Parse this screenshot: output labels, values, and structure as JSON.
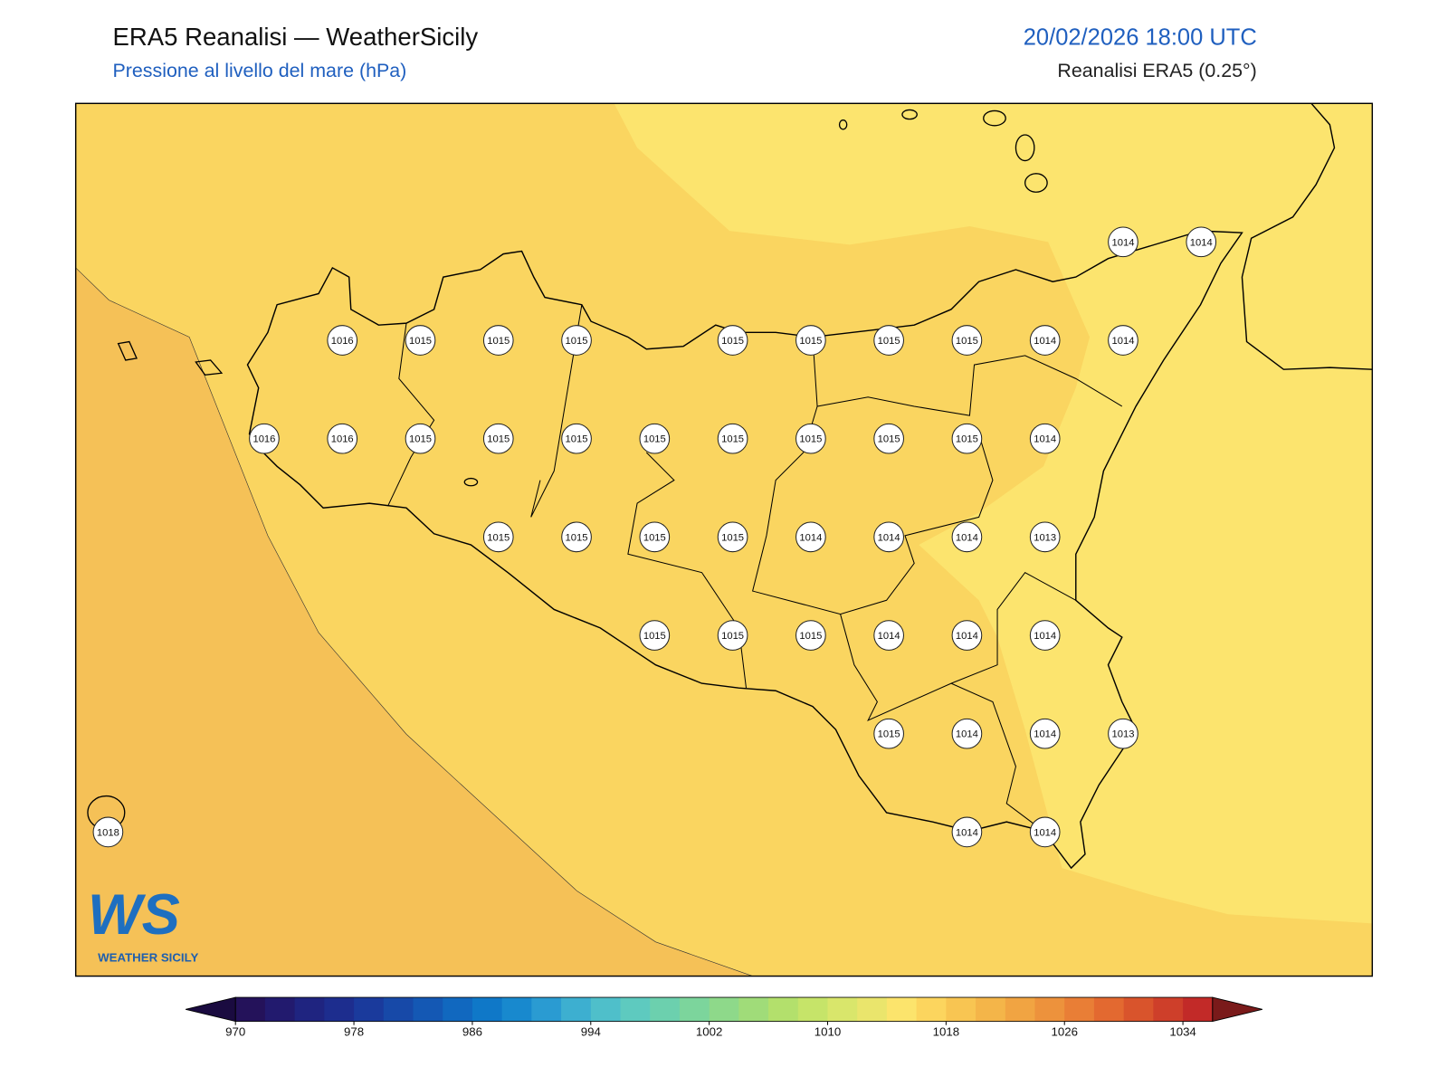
{
  "header": {
    "title": "ERA5 Reanalisi — WeatherSicily",
    "subtitle": "Pressione al livello del mare (hPa)",
    "datetime": "20/02/2026 18:00 UTC",
    "source": "Reanalisi ERA5 (0.25°)"
  },
  "map": {
    "stations": [
      [
        null,
        null,
        null,
        null,
        null,
        null,
        null,
        null,
        null,
        null,
        null,
        null,
        null,
        1014,
        1014
      ],
      [
        null,
        null,
        null,
        1016,
        1015,
        1015,
        1015,
        null,
        1015,
        1015,
        1015,
        1015,
        1014,
        1014,
        null
      ],
      [
        null,
        null,
        1016,
        1016,
        1015,
        1015,
        1015,
        1015,
        1015,
        1015,
        1015,
        1015,
        1014,
        null,
        null
      ],
      [
        null,
        null,
        null,
        null,
        null,
        1015,
        1015,
        1015,
        1015,
        1014,
        1014,
        1014,
        1013,
        null,
        null
      ],
      [
        null,
        null,
        null,
        null,
        null,
        null,
        null,
        1015,
        1015,
        1015,
        1014,
        1014,
        1014,
        null,
        null
      ],
      [
        null,
        null,
        null,
        null,
        null,
        null,
        null,
        null,
        null,
        null,
        1015,
        1014,
        1014,
        1013,
        null
      ],
      [
        1018,
        null,
        null,
        null,
        null,
        null,
        null,
        null,
        null,
        null,
        null,
        1014,
        1014,
        null,
        null
      ]
    ]
  },
  "colorbar": {
    "levels": [
      970,
      972,
      974,
      976,
      978,
      980,
      982,
      984,
      986,
      988,
      990,
      992,
      994,
      996,
      998,
      1000,
      1002,
      1004,
      1006,
      1008,
      1010,
      1012,
      1014,
      1016,
      1018,
      1020,
      1022,
      1024,
      1026,
      1028,
      1030,
      1032,
      1034,
      1036
    ],
    "colors": [
      "#24125a",
      "#221a6e",
      "#1f2480",
      "#1d2d8e",
      "#1a3a9c",
      "#1749a8",
      "#1458b4",
      "#1168bf",
      "#0f78c8",
      "#1889ce",
      "#2a9bd2",
      "#3dafd0",
      "#4fbfca",
      "#5ecabf",
      "#6cd0ae",
      "#7cd59c",
      "#8ed98a",
      "#a0dc79",
      "#b3e06c",
      "#c6e469",
      "#d9e66b",
      "#eae56c",
      "#fce46c",
      "#fcd55e",
      "#f8c552",
      "#f4b549",
      "#f1a442",
      "#ed923c",
      "#e97e36",
      "#e36930",
      "#d9542c",
      "#ce3f2a",
      "#c22a28"
    ],
    "under_color": "#1a0b40",
    "over_color": "#7a1a1a",
    "ticks": [
      970,
      978,
      986,
      994,
      1002,
      1010,
      1018,
      1026,
      1034
    ]
  },
  "logo": {
    "mark": "WS",
    "name": "WEATHER SICILY"
  }
}
